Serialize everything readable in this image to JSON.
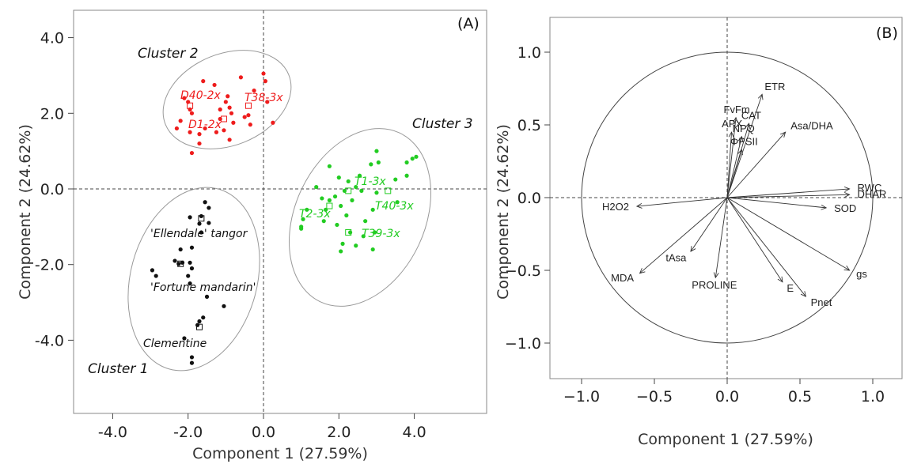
{
  "colors": {
    "cluster1": "#111111",
    "cluster2": "#ee1c1c",
    "cluster3": "#22cc22",
    "ellipse": "#9a9a9a"
  },
  "chart_data": [
    {
      "panel": "(A)",
      "type": "scatter",
      "xlabel": "Component 1 (27.59%)",
      "ylabel": "Component 2 (24.62%)",
      "xlim": [
        -5.0,
        5.0
      ],
      "ylim": [
        -5.9,
        4.8
      ],
      "xticks": [
        "-4.0",
        "-2.0",
        "0.0",
        "2.0",
        "4.0"
      ],
      "yticks": [
        "4.0",
        "2.0",
        "0.0",
        "-2.0",
        "-4.0"
      ],
      "series": [
        {
          "name": "Cluster 1",
          "color_key": "cluster1",
          "points": [
            [
              -1.55,
              -0.35
            ],
            [
              -1.45,
              -0.5
            ],
            [
              -1.95,
              -0.75
            ],
            [
              -1.65,
              -0.72
            ],
            [
              -1.7,
              -0.92
            ],
            [
              -1.45,
              -0.9
            ],
            [
              -1.65,
              -1.15
            ],
            [
              -2.2,
              -1.6
            ],
            [
              -1.9,
              -1.55
            ],
            [
              -2.35,
              -1.9
            ],
            [
              -2.15,
              -1.95
            ],
            [
              -1.95,
              -1.95
            ],
            [
              -2.25,
              -1.98
            ],
            [
              -1.9,
              -2.1
            ],
            [
              -2.95,
              -2.15
            ],
            [
              -2.85,
              -2.3
            ],
            [
              -2.0,
              -2.3
            ],
            [
              -1.95,
              -2.5
            ],
            [
              -1.5,
              -2.85
            ],
            [
              -1.05,
              -3.1
            ],
            [
              -1.6,
              -3.4
            ],
            [
              -1.7,
              -3.5
            ],
            [
              -1.75,
              -3.6
            ],
            [
              -2.1,
              -3.95
            ],
            [
              -1.9,
              -4.45
            ],
            [
              -1.9,
              -4.6
            ]
          ],
          "centroids": [
            [
              -1.65,
              -0.78
            ],
            [
              -2.2,
              -1.98
            ],
            [
              -1.7,
              -3.65
            ]
          ],
          "point_labels": [
            "'Ellendale' tangor",
            "'Fortune mandarin'",
            "Clementine"
          ]
        },
        {
          "name": "Cluster 2",
          "color_key": "cluster2",
          "points": [
            [
              -2.1,
              2.4
            ],
            [
              -2.0,
              2.3
            ],
            [
              -1.9,
              2.0
            ],
            [
              -1.6,
              2.85
            ],
            [
              -1.3,
              2.75
            ],
            [
              -1.95,
              2.1
            ],
            [
              -2.2,
              1.8
            ],
            [
              -2.3,
              1.6
            ],
            [
              -1.95,
              1.5
            ],
            [
              -1.55,
              1.6
            ],
            [
              -1.15,
              1.85
            ],
            [
              -1.0,
              2.3
            ],
            [
              -0.9,
              2.15
            ],
            [
              -0.85,
              2.0
            ],
            [
              -0.95,
              2.45
            ],
            [
              -0.6,
              2.95
            ],
            [
              -1.15,
              2.1
            ],
            [
              -0.8,
              1.75
            ],
            [
              -1.05,
              1.55
            ],
            [
              -1.7,
              1.2
            ],
            [
              -1.25,
              1.5
            ],
            [
              -0.9,
              1.3
            ],
            [
              -0.5,
              1.9
            ],
            [
              -0.35,
              1.7
            ],
            [
              0.0,
              3.05
            ],
            [
              0.05,
              2.85
            ],
            [
              -0.25,
              2.6
            ],
            [
              0.1,
              2.3
            ],
            [
              0.25,
              1.75
            ],
            [
              -1.9,
              0.95
            ],
            [
              -0.4,
              1.95
            ],
            [
              -1.7,
              1.45
            ]
          ],
          "centroids": [
            [
              -1.95,
              2.2
            ],
            [
              -0.4,
              2.2
            ],
            [
              -1.05,
              1.85
            ]
          ],
          "point_labels": [
            "D40-2x",
            "D1-2x",
            "T38-3x"
          ]
        },
        {
          "name": "Cluster 3",
          "color_key": "cluster3",
          "points": [
            [
              1.05,
              -0.8
            ],
            [
              1.15,
              -0.55
            ],
            [
              1.0,
              -1.0
            ],
            [
              1.4,
              0.05
            ],
            [
              1.55,
              -0.25
            ],
            [
              1.75,
              0.6
            ],
            [
              1.75,
              -0.3
            ],
            [
              1.6,
              -0.85
            ],
            [
              1.65,
              -0.55
            ],
            [
              1.95,
              -0.95
            ],
            [
              2.05,
              -0.45
            ],
            [
              1.9,
              -0.2
            ],
            [
              2.0,
              0.3
            ],
            [
              2.25,
              0.2
            ],
            [
              2.15,
              -0.05
            ],
            [
              2.2,
              -0.7
            ],
            [
              2.3,
              -1.15
            ],
            [
              2.35,
              -0.3
            ],
            [
              2.45,
              0.05
            ],
            [
              2.1,
              -1.45
            ],
            [
              2.05,
              -1.65
            ],
            [
              2.45,
              -1.5
            ],
            [
              2.9,
              -1.6
            ],
            [
              2.65,
              -1.25
            ],
            [
              2.7,
              -0.85
            ],
            [
              2.9,
              -0.55
            ],
            [
              3.0,
              -0.1
            ],
            [
              3.05,
              0.7
            ],
            [
              3.0,
              1.0
            ],
            [
              2.85,
              0.65
            ],
            [
              2.55,
              0.35
            ],
            [
              2.6,
              -0.05
            ],
            [
              3.5,
              0.25
            ],
            [
              3.55,
              -0.35
            ],
            [
              3.8,
              0.7
            ],
            [
              3.8,
              0.35
            ],
            [
              3.95,
              0.8
            ],
            [
              4.05,
              0.85
            ],
            [
              2.95,
              -1.15
            ],
            [
              1.0,
              -1.05
            ]
          ],
          "centroids": [
            [
              2.25,
              -0.05
            ],
            [
              3.3,
              -0.05
            ],
            [
              1.75,
              -0.45
            ],
            [
              2.25,
              -1.15
            ]
          ],
          "point_labels": [
            "T1-3x",
            "T40-3x",
            "T2-3x",
            "T39-3x"
          ]
        }
      ]
    },
    {
      "panel": "(B)",
      "type": "biplot-loadings",
      "xlabel": "Component 1 (27.59%)",
      "ylabel": "Component 2 (24.62%)",
      "xlim": [
        -1.2,
        1.2
      ],
      "ylim": [
        -1.2,
        1.2
      ],
      "xticks": [
        "−1.0",
        "−0.5",
        "0.0",
        "0.5",
        "1.0"
      ],
      "yticks": [
        "1.0",
        "0.5",
        "0.0",
        "−0.5",
        "−1.0"
      ],
      "loadings": [
        {
          "name": "ETR",
          "x": 0.24,
          "y": 0.71
        },
        {
          "name": "FvFm",
          "x": 0.06,
          "y": 0.55
        },
        {
          "name": "CAT",
          "x": 0.15,
          "y": 0.51
        },
        {
          "name": "APX",
          "x": 0.03,
          "y": 0.45
        },
        {
          "name": "NPQ",
          "x": 0.1,
          "y": 0.42
        },
        {
          "name": "Asa/DHA",
          "x": 0.4,
          "y": 0.45
        },
        {
          "name": "ΦPSII",
          "x": 0.1,
          "y": 0.33
        },
        {
          "name": "RWC",
          "x": 0.84,
          "y": 0.06
        },
        {
          "name": "DHAR",
          "x": 0.84,
          "y": 0.02
        },
        {
          "name": "SOD",
          "x": 0.68,
          "y": -0.07
        },
        {
          "name": "H2O2",
          "x": -0.62,
          "y": -0.06
        },
        {
          "name": "tAsa",
          "x": -0.25,
          "y": -0.37
        },
        {
          "name": "MDA",
          "x": -0.6,
          "y": -0.52
        },
        {
          "name": "PROLINE",
          "x": -0.08,
          "y": -0.55
        },
        {
          "name": "E",
          "x": 0.38,
          "y": -0.58
        },
        {
          "name": "Pnet",
          "x": 0.54,
          "y": -0.68
        },
        {
          "name": "gs",
          "x": 0.84,
          "y": -0.5
        }
      ]
    }
  ]
}
